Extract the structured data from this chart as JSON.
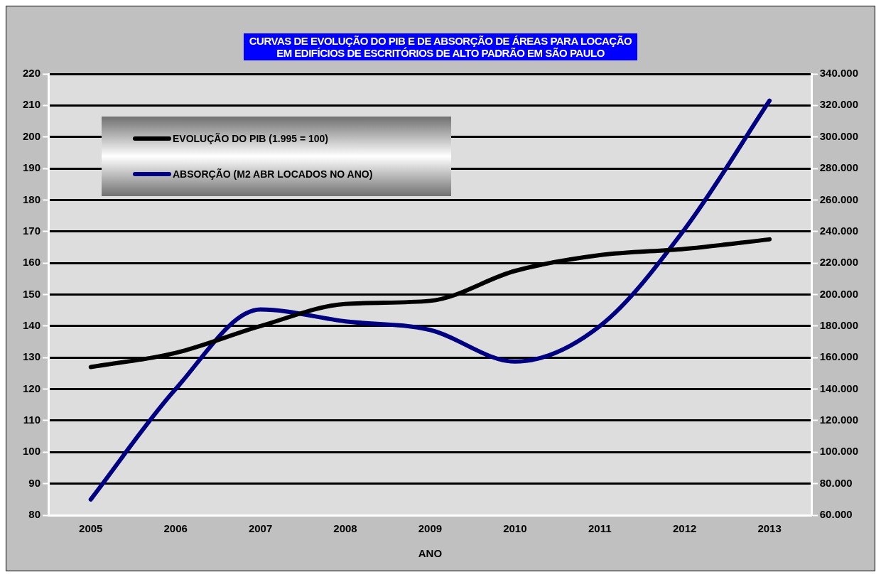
{
  "chart_data": {
    "type": "line",
    "title": "CURVAS DE EVOLUÇÃO DO PIB E DE ABSORÇÃO DE ÁREAS PARA LOCAÇÃO\nEM EDIFÍCIOS DE ESCRITÓRIOS DE ALTO PADRÃO EM SÃO PAULO",
    "xlabel": "ANO",
    "categories": [
      "2005",
      "2006",
      "2007",
      "2008",
      "2009",
      "2010",
      "2011",
      "2012",
      "2013"
    ],
    "series": [
      {
        "name": "EVOLUÇÃO DO PIB (1.995 = 100)",
        "color": "#000000",
        "values": [
          127,
          131.5,
          140,
          147,
          148,
          157.5,
          162.5,
          164.5,
          167.5
        ]
      },
      {
        "name": "ABSORÇÃO (M2 ABR LOCADOS NO ANO)",
        "color": "#000080",
        "axis": "y2",
        "values": [
          70000,
          140000,
          190500,
          183000,
          177500,
          157500,
          180000,
          241500,
          323000
        ]
      }
    ],
    "ylim": [
      80,
      220
    ],
    "yticks": [
      80,
      90,
      100,
      110,
      120,
      130,
      140,
      150,
      160,
      170,
      180,
      190,
      200,
      210,
      220
    ],
    "y2lim": [
      60000,
      340000
    ],
    "y2ticks": [
      {
        "value": 60000,
        "label": "60.000"
      },
      {
        "value": 80000,
        "label": "80.000"
      },
      {
        "value": 100000,
        "label": "100.000"
      },
      {
        "value": 120000,
        "label": "120.000"
      },
      {
        "value": 140000,
        "label": "140.000"
      },
      {
        "value": 160000,
        "label": "160.000"
      },
      {
        "value": 180000,
        "label": "180.000"
      },
      {
        "value": 200000,
        "label": "200.000"
      },
      {
        "value": 220000,
        "label": "220.000"
      },
      {
        "value": 240000,
        "label": "240.000"
      },
      {
        "value": 260000,
        "label": "260.000"
      },
      {
        "value": 280000,
        "label": "280.000"
      },
      {
        "value": 300000,
        "label": "300.000"
      },
      {
        "value": 320000,
        "label": "320.000"
      },
      {
        "value": 340000,
        "label": "340.000"
      }
    ],
    "grid": "y",
    "legend": "top left",
    "marker": "none",
    "line_style": "solid"
  }
}
